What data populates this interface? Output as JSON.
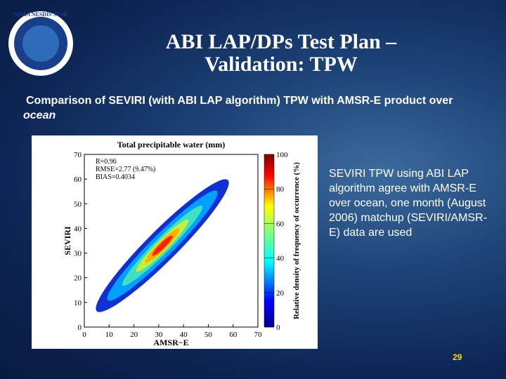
{
  "header": {
    "logo": "NOAA NESDIS STAR",
    "title_line1": "ABI LAP/DPs Test Plan –",
    "title_line2": "Validation: TPW"
  },
  "subtitle": {
    "text": "Comparison of SEVIRI (with ABI LAP algorithm) TPW with AMSR-E product over ",
    "emphasis": "ocean"
  },
  "chart_data": {
    "type": "density-scatter",
    "title": "Total precipitable water (mm)",
    "xlabel": "AMSR−E",
    "ylabel": "SEVIRI",
    "xlim": [
      0,
      70
    ],
    "xticks": [
      0,
      10,
      20,
      30,
      40,
      50,
      60,
      70
    ],
    "ylim": [
      0,
      70
    ],
    "yticks": [
      0,
      10,
      20,
      30,
      40,
      50,
      60,
      70
    ],
    "annotations": [
      "R=0.96",
      "RMSE=2.77 (9.47%)",
      "BIAS=0.4034"
    ],
    "colorbar": {
      "label": "Relative density of frequency of occurrence (%)",
      "lim": [
        0,
        100
      ],
      "ticks": [
        0,
        20,
        40,
        60,
        80,
        100
      ]
    }
  },
  "body_text": "SEVIRI TPW using ABI LAP algorithm agree with AMSR-E over ocean, one month (August 2006)  matchup (SEVIRI/AMSR-E) data are used",
  "page_number": "29"
}
